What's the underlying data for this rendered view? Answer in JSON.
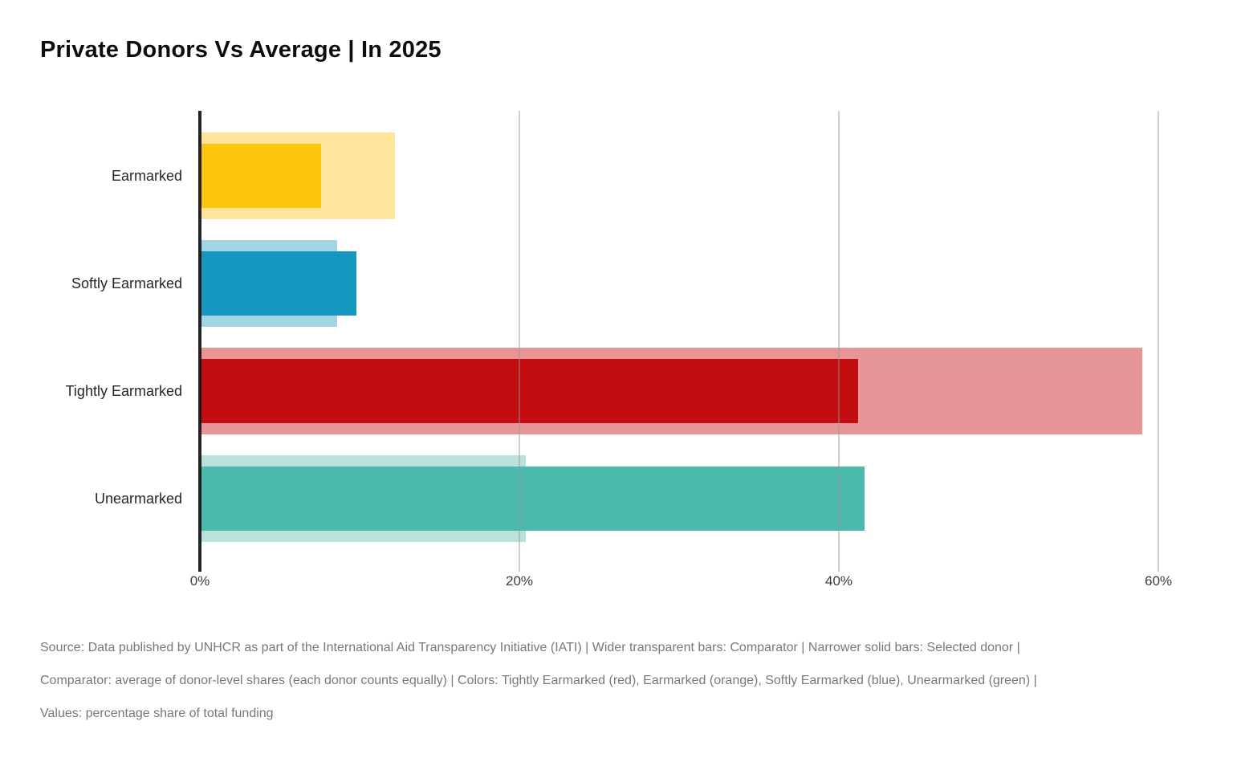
{
  "title": "Private Donors Vs Average | In 2025",
  "chart_data": {
    "type": "bar",
    "orientation": "horizontal",
    "title": "Private Donors Vs Average | In 2025",
    "categories": [
      "Earmarked",
      "Softly Earmarked",
      "Tightly Earmarked",
      "Unearmarked"
    ],
    "series": [
      {
        "name": "Selected donor",
        "style": "narrow solid bars",
        "values": [
          7.6,
          9.8,
          41.2,
          41.6
        ],
        "colors": [
          "#fdc40d",
          "#1697bf",
          "#c40d11",
          "#4bb9ac"
        ]
      },
      {
        "name": "Comparator",
        "style": "wider transparent bars",
        "values": [
          12.2,
          8.6,
          59.0,
          20.4
        ],
        "colors": [
          "#ffe49c",
          "#a2d4e4",
          "#e79597",
          "#b9e3da"
        ]
      }
    ],
    "x_ticks": [
      {
        "label": "0%",
        "value": 0
      },
      {
        "label": "20%",
        "value": 20
      },
      {
        "label": "40%",
        "value": 40
      },
      {
        "label": "60%",
        "value": 60
      }
    ],
    "xlim": [
      0,
      63.6
    ],
    "xlabel": "",
    "ylabel": "",
    "legend": "none",
    "grid": "vertical gridlines at x ticks, visible through bars",
    "values_unit": "percentage share of total funding"
  },
  "footer": {
    "lines": [
      "Source: Data published by UNHCR as part of the International Aid Transparency Initiative (IATI) | Wider transparent bars: Comparator | Narrower solid bars: Selected donor |",
      "Comparator: average of donor-level shares (each donor counts equally) | Colors: Tightly Earmarked (red), Earmarked (orange), Softly Earmarked (blue), Unearmarked (green) |",
      "Values: percentage share of total funding"
    ]
  }
}
